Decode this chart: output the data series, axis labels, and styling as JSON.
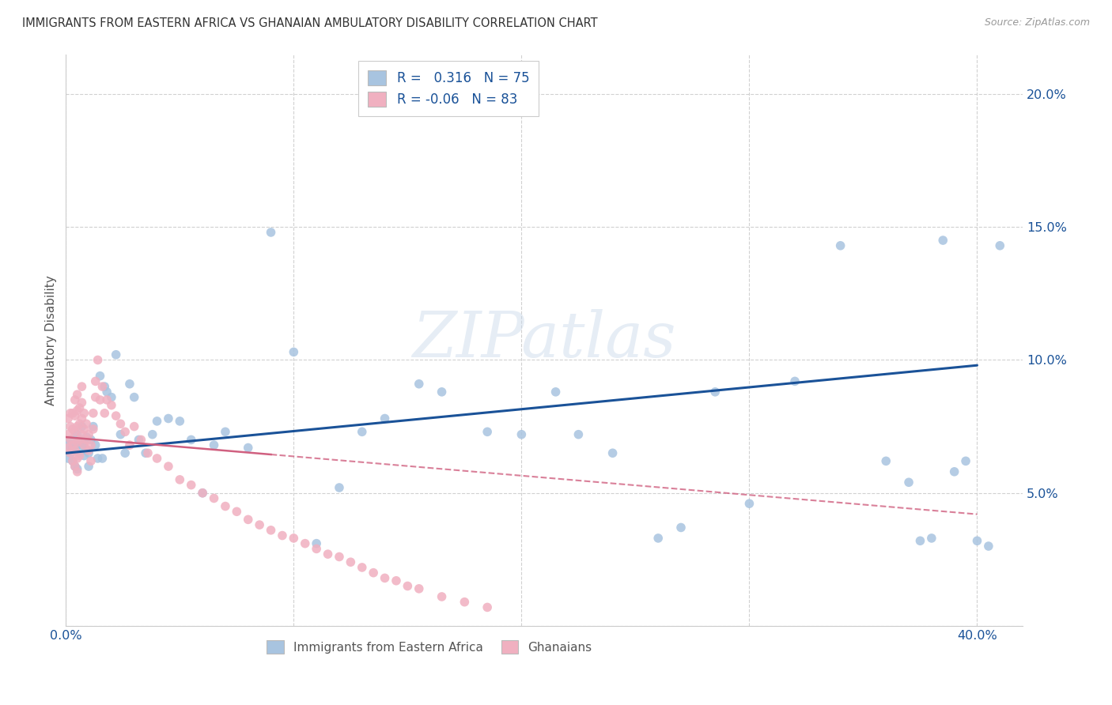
{
  "title": "IMMIGRANTS FROM EASTERN AFRICA VS GHANAIAN AMBULATORY DISABILITY CORRELATION CHART",
  "source": "Source: ZipAtlas.com",
  "ylabel": "Ambulatory Disability",
  "xlim": [
    0.0,
    0.42
  ],
  "ylim": [
    0.0,
    0.215
  ],
  "xticks": [
    0.0,
    0.1,
    0.2,
    0.3,
    0.4
  ],
  "yticks": [
    0.0,
    0.05,
    0.1,
    0.15,
    0.2
  ],
  "blue_R": 0.316,
  "blue_N": 75,
  "pink_R": -0.06,
  "pink_N": 83,
  "blue_color": "#a8c4e0",
  "pink_color": "#f0b0c0",
  "blue_line_color": "#1a5298",
  "pink_line_color": "#d06080",
  "background_color": "#ffffff",
  "grid_color": "#cccccc",
  "watermark": "ZIPatlas",
  "legend_label_blue": "Immigrants from Eastern Africa",
  "legend_label_pink": "Ghanaians",
  "blue_x": [
    0.001,
    0.001,
    0.002,
    0.002,
    0.003,
    0.003,
    0.004,
    0.004,
    0.005,
    0.005,
    0.005,
    0.006,
    0.006,
    0.007,
    0.007,
    0.008,
    0.008,
    0.009,
    0.009,
    0.01,
    0.01,
    0.011,
    0.012,
    0.013,
    0.014,
    0.015,
    0.016,
    0.017,
    0.018,
    0.02,
    0.022,
    0.024,
    0.026,
    0.028,
    0.03,
    0.032,
    0.035,
    0.038,
    0.04,
    0.045,
    0.05,
    0.055,
    0.06,
    0.065,
    0.07,
    0.08,
    0.09,
    0.1,
    0.11,
    0.12,
    0.13,
    0.14,
    0.155,
    0.165,
    0.185,
    0.2,
    0.215,
    0.225,
    0.24,
    0.26,
    0.27,
    0.285,
    0.3,
    0.32,
    0.34,
    0.36,
    0.37,
    0.375,
    0.38,
    0.385,
    0.39,
    0.395,
    0.4,
    0.405,
    0.41
  ],
  "blue_y": [
    0.068,
    0.063,
    0.065,
    0.07,
    0.062,
    0.067,
    0.06,
    0.066,
    0.068,
    0.072,
    0.059,
    0.065,
    0.07,
    0.075,
    0.068,
    0.064,
    0.069,
    0.071,
    0.066,
    0.06,
    0.065,
    0.07,
    0.075,
    0.068,
    0.063,
    0.094,
    0.063,
    0.09,
    0.088,
    0.086,
    0.102,
    0.072,
    0.065,
    0.091,
    0.086,
    0.07,
    0.065,
    0.072,
    0.077,
    0.078,
    0.077,
    0.07,
    0.05,
    0.068,
    0.073,
    0.067,
    0.148,
    0.103,
    0.031,
    0.052,
    0.073,
    0.078,
    0.091,
    0.088,
    0.073,
    0.072,
    0.088,
    0.072,
    0.065,
    0.033,
    0.037,
    0.088,
    0.046,
    0.092,
    0.143,
    0.062,
    0.054,
    0.032,
    0.033,
    0.145,
    0.058,
    0.062,
    0.032,
    0.03,
    0.143
  ],
  "pink_x": [
    0.001,
    0.001,
    0.001,
    0.002,
    0.002,
    0.002,
    0.002,
    0.003,
    0.003,
    0.003,
    0.003,
    0.004,
    0.004,
    0.004,
    0.004,
    0.004,
    0.005,
    0.005,
    0.005,
    0.005,
    0.005,
    0.005,
    0.006,
    0.006,
    0.006,
    0.006,
    0.007,
    0.007,
    0.007,
    0.007,
    0.008,
    0.008,
    0.008,
    0.009,
    0.009,
    0.01,
    0.01,
    0.011,
    0.011,
    0.012,
    0.012,
    0.013,
    0.013,
    0.014,
    0.015,
    0.016,
    0.017,
    0.018,
    0.02,
    0.022,
    0.024,
    0.026,
    0.028,
    0.03,
    0.033,
    0.036,
    0.04,
    0.045,
    0.05,
    0.055,
    0.06,
    0.065,
    0.07,
    0.075,
    0.08,
    0.085,
    0.09,
    0.095,
    0.1,
    0.105,
    0.11,
    0.115,
    0.12,
    0.125,
    0.13,
    0.135,
    0.14,
    0.145,
    0.15,
    0.155,
    0.165,
    0.175,
    0.185
  ],
  "pink_y": [
    0.067,
    0.072,
    0.078,
    0.065,
    0.07,
    0.075,
    0.08,
    0.062,
    0.068,
    0.074,
    0.08,
    0.06,
    0.066,
    0.073,
    0.079,
    0.085,
    0.058,
    0.063,
    0.069,
    0.075,
    0.081,
    0.087,
    0.064,
    0.07,
    0.076,
    0.082,
    0.072,
    0.078,
    0.084,
    0.09,
    0.068,
    0.074,
    0.08,
    0.07,
    0.076,
    0.066,
    0.072,
    0.062,
    0.068,
    0.074,
    0.08,
    0.086,
    0.092,
    0.1,
    0.085,
    0.09,
    0.08,
    0.085,
    0.083,
    0.079,
    0.076,
    0.073,
    0.068,
    0.075,
    0.07,
    0.065,
    0.063,
    0.06,
    0.055,
    0.053,
    0.05,
    0.048,
    0.045,
    0.043,
    0.04,
    0.038,
    0.036,
    0.034,
    0.033,
    0.031,
    0.029,
    0.027,
    0.026,
    0.024,
    0.022,
    0.02,
    0.018,
    0.017,
    0.015,
    0.014,
    0.011,
    0.009,
    0.007
  ]
}
